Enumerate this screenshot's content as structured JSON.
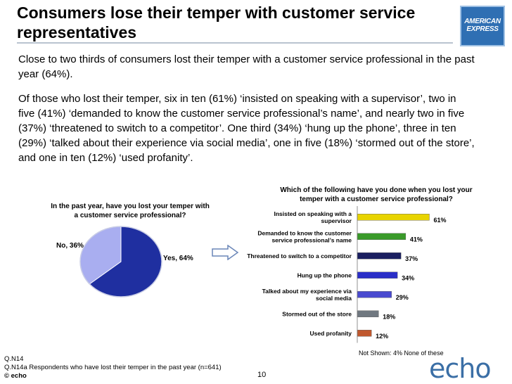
{
  "slide": {
    "title": "Consumers lose their temper with customer service representatives",
    "logo_text": [
      "AMERICAN",
      "EXPRESS"
    ],
    "paragraph1": "Close to two thirds of consumers lost their temper with a customer service professional in the past year (64%).",
    "paragraph2": "Of those who lost their temper, six in ten (61%) ‘insisted on speaking with a supervisor’, two in five (41%) ‘demanded to know the customer service professional’s name’, and nearly two in five (37%) ‘threatened to switch to a competitor’. One third (34%) ‘hung up the phone’, three in ten (29%) ‘talked about their experience via social media’, one in five (18%) ‘stormed out of the store’, and one in ten (12%) ‘used profanity’.",
    "footnote1": "Q.N14",
    "footnote2": "Q.N14a Respondents who have lost their temper in the past year (n=641)",
    "copyright": "© echo",
    "page_number": "10",
    "echo_logo": "echo"
  },
  "chart_data": [
    {
      "type": "pie",
      "title": "In the past year, have you lost your temper with a customer service professional?",
      "slices": [
        {
          "label": "Yes, 64%",
          "value": 64,
          "color": "#1f2fa0"
        },
        {
          "label": "No, 36%",
          "value": 36,
          "color": "#a9aef0"
        }
      ]
    },
    {
      "type": "bar",
      "orientation": "horizontal",
      "title": "Which of the following have you done when you lost your temper with a customer service professional?",
      "categories": [
        "Insisted on speaking with a supervisor",
        "Demanded to know the customer service professional’s name",
        "Threatened to switch to a competitor",
        "Hung up the phone",
        "Talked about my experience via social media",
        "Stormed out of the store",
        "Used profanity"
      ],
      "category_lines": [
        [
          "Insisted on speaking with a",
          "supervisor"
        ],
        [
          "Demanded to know the customer",
          "service professional’s name"
        ],
        [
          "Threatened to switch to a competitor"
        ],
        [
          "Hung up the phone"
        ],
        [
          "Talked about my experience via",
          "social media"
        ],
        [
          "Stormed out of the store"
        ],
        [
          "Used profanity"
        ]
      ],
      "values": [
        61,
        41,
        37,
        34,
        29,
        18,
        12
      ],
      "value_labels": [
        "61%",
        "41%",
        "37%",
        "34%",
        "29%",
        "18%",
        "12%"
      ],
      "colors": [
        "#e8d400",
        "#3a9a2a",
        "#1a1f60",
        "#2a2ec8",
        "#4a4bd0",
        "#707880",
        "#c0582e"
      ],
      "xlim": [
        0,
        100
      ],
      "xticks": [
        "0%",
        "20%",
        "40%",
        "60%",
        "80%",
        "100%"
      ],
      "note": "Not Shown: 4% None of these"
    }
  ]
}
